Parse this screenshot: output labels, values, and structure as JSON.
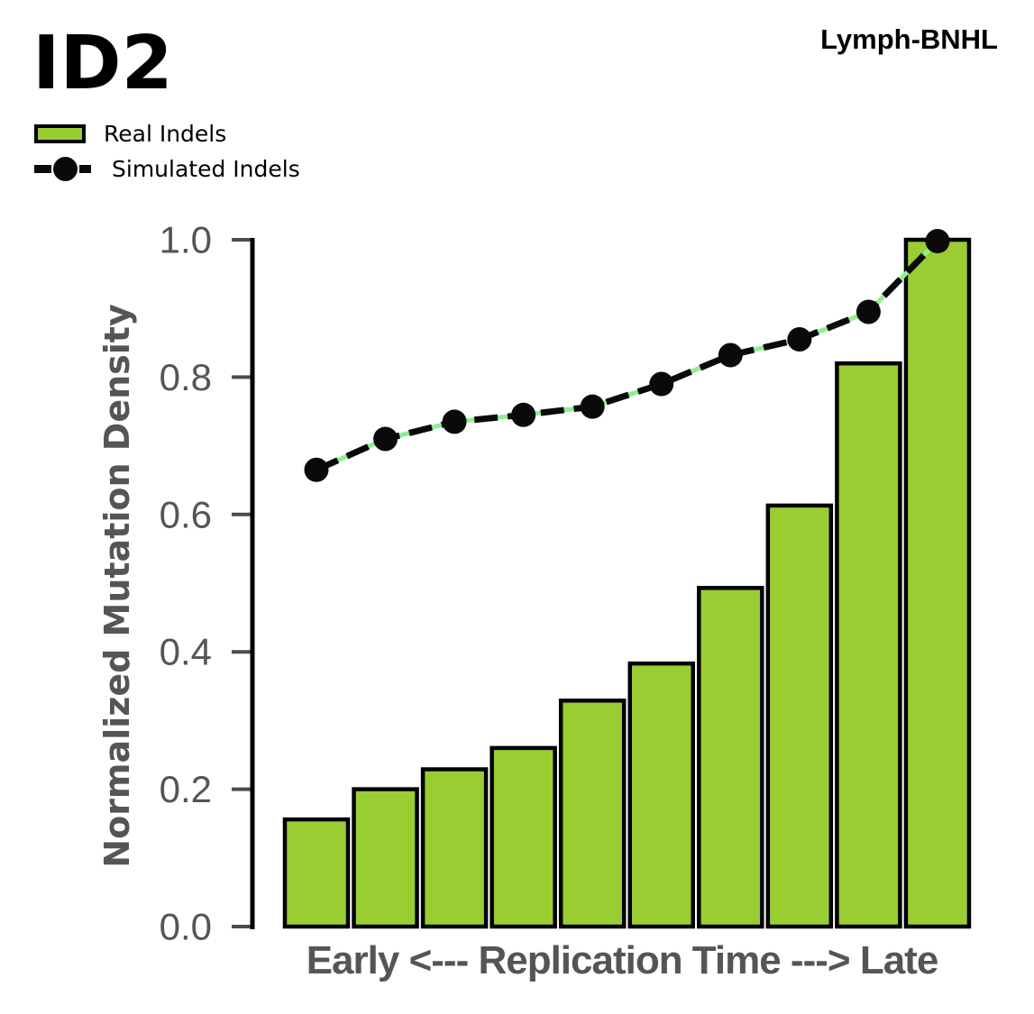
{
  "header": {
    "title": "ID2",
    "cohort": "Lymph-BNHL"
  },
  "legend": {
    "real_label": "Real Indels",
    "simulated_label": "Simulated Indels"
  },
  "chart_data": {
    "type": "bar",
    "title": "ID2",
    "annotation": "Lymph-BNHL",
    "xlabel": "Early <--- Replication Time ---> Late",
    "ylabel": "Normalized Mutation Density",
    "x": [
      1,
      2,
      3,
      4,
      5,
      6,
      7,
      8,
      9,
      10
    ],
    "series": [
      {
        "name": "Real Indels",
        "type": "bar",
        "color": "#9ACD32",
        "values": [
          0.156,
          0.2,
          0.229,
          0.26,
          0.329,
          0.383,
          0.493,
          0.613,
          0.82,
          1.0
        ]
      },
      {
        "name": "Simulated Indels",
        "type": "line-dashed-with-markers",
        "color": "#0a0a0a",
        "gap_color": "#90EE90",
        "values": [
          0.665,
          0.71,
          0.735,
          0.745,
          0.757,
          0.79,
          0.832,
          0.855,
          0.895,
          0.998
        ]
      }
    ],
    "ylim": [
      0.0,
      1.0
    ],
    "yticks": [
      0.0,
      0.2,
      0.4,
      0.6,
      0.8,
      1.0
    ],
    "ytick_labels": [
      "0.0",
      "0.2",
      "0.4",
      "0.6",
      "0.8",
      "1.0"
    ],
    "grid": "off",
    "legend_position": "upper-left-above-axes",
    "colors": {
      "bar_edge": "#000000",
      "axis": "#000000",
      "tick": "#4d4d4d",
      "label": "#555555"
    }
  }
}
